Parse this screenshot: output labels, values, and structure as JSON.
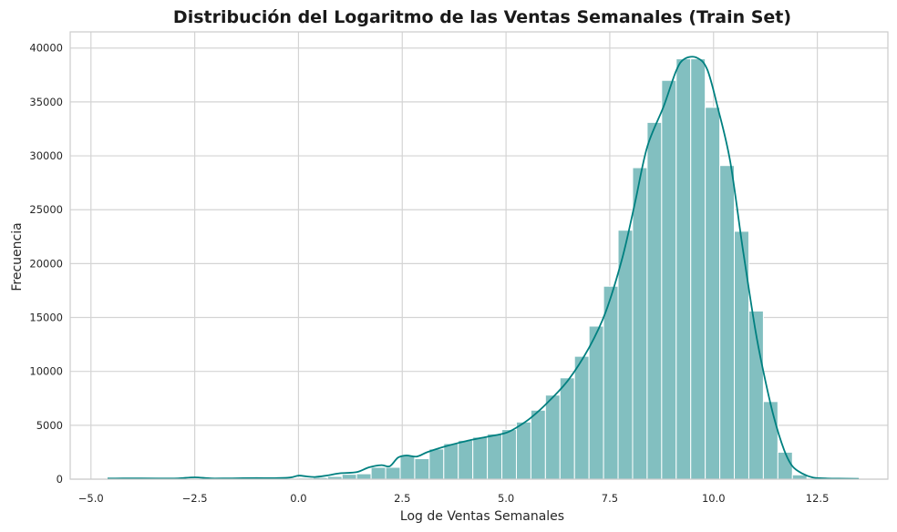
{
  "chart_data": {
    "type": "bar",
    "title": "Distribución del Logaritmo de las Ventas Semanales (Train Set)",
    "xlabel": "Log de Ventas Semanales",
    "ylabel": "Frecuencia",
    "xlim": [
      -5.5,
      14.2
    ],
    "ylim": [
      0,
      41500
    ],
    "xticks": [
      -5.0,
      -2.5,
      0.0,
      2.5,
      5.0,
      7.5,
      10.0,
      12.5
    ],
    "xtick_labels": [
      "−5.0",
      "−2.5",
      "0.0",
      "2.5",
      "5.0",
      "7.5",
      "10.0",
      "12.5"
    ],
    "yticks": [
      0,
      5000,
      10000,
      15000,
      20000,
      25000,
      30000,
      35000,
      40000
    ],
    "ytick_labels": [
      "0",
      "5000",
      "10000",
      "15000",
      "20000",
      "25000",
      "30000",
      "35000",
      "40000"
    ],
    "grid": true,
    "bar_color": "#82bfc0",
    "kde_color": "#008080",
    "bins": [
      {
        "x0": -4.6,
        "x1": -4.25,
        "count": 80
      },
      {
        "x0": -3.9,
        "x1": -3.55,
        "count": 60
      },
      {
        "x0": -2.5,
        "x1": -2.15,
        "count": 60
      },
      {
        "x0": -1.2,
        "x1": -0.85,
        "count": 60
      },
      {
        "x0": -0.4,
        "x1": -0.05,
        "count": 80
      },
      {
        "x0": 0.0,
        "x1": 0.35,
        "count": 100
      },
      {
        "x0": 0.35,
        "x1": 0.7,
        "count": 150
      },
      {
        "x0": 0.7,
        "x1": 1.05,
        "count": 250
      },
      {
        "x0": 1.05,
        "x1": 1.4,
        "count": 450
      },
      {
        "x0": 1.4,
        "x1": 1.75,
        "count": 500
      },
      {
        "x0": 1.75,
        "x1": 2.1,
        "count": 1100
      },
      {
        "x0": 2.1,
        "x1": 2.45,
        "count": 1100
      },
      {
        "x0": 2.45,
        "x1": 2.8,
        "count": 2200
      },
      {
        "x0": 2.8,
        "x1": 3.15,
        "count": 1900
      },
      {
        "x0": 3.15,
        "x1": 3.5,
        "count": 2800
      },
      {
        "x0": 3.5,
        "x1": 3.85,
        "count": 3300
      },
      {
        "x0": 3.85,
        "x1": 4.2,
        "count": 3600
      },
      {
        "x0": 4.2,
        "x1": 4.55,
        "count": 3900
      },
      {
        "x0": 4.55,
        "x1": 4.9,
        "count": 4200
      },
      {
        "x0": 4.9,
        "x1": 5.25,
        "count": 4600
      },
      {
        "x0": 5.25,
        "x1": 5.6,
        "count": 5300
      },
      {
        "x0": 5.6,
        "x1": 5.95,
        "count": 6400
      },
      {
        "x0": 5.95,
        "x1": 6.3,
        "count": 7800
      },
      {
        "x0": 6.3,
        "x1": 6.65,
        "count": 9400
      },
      {
        "x0": 6.65,
        "x1": 7.0,
        "count": 11400
      },
      {
        "x0": 7.0,
        "x1": 7.35,
        "count": 14200
      },
      {
        "x0": 7.35,
        "x1": 7.7,
        "count": 17900
      },
      {
        "x0": 7.7,
        "x1": 8.05,
        "count": 23100
      },
      {
        "x0": 8.05,
        "x1": 8.4,
        "count": 28900
      },
      {
        "x0": 8.4,
        "x1": 8.75,
        "count": 33100
      },
      {
        "x0": 8.75,
        "x1": 9.1,
        "count": 37000
      },
      {
        "x0": 9.1,
        "x1": 9.45,
        "count": 39000
      },
      {
        "x0": 9.45,
        "x1": 9.8,
        "count": 39000
      },
      {
        "x0": 9.8,
        "x1": 10.15,
        "count": 34500
      },
      {
        "x0": 10.15,
        "x1": 10.5,
        "count": 29100
      },
      {
        "x0": 10.5,
        "x1": 10.85,
        "count": 23000
      },
      {
        "x0": 10.85,
        "x1": 11.2,
        "count": 15600
      },
      {
        "x0": 11.2,
        "x1": 11.55,
        "count": 7200
      },
      {
        "x0": 11.55,
        "x1": 11.9,
        "count": 2500
      },
      {
        "x0": 11.9,
        "x1": 12.25,
        "count": 400
      }
    ],
    "kde": [
      [
        -4.6,
        60
      ],
      [
        -4.0,
        80
      ],
      [
        -3.4,
        60
      ],
      [
        -2.9,
        80
      ],
      [
        -2.5,
        170
      ],
      [
        -2.1,
        70
      ],
      [
        -1.6,
        80
      ],
      [
        -1.0,
        100
      ],
      [
        -0.6,
        90
      ],
      [
        -0.2,
        150
      ],
      [
        0.0,
        330
      ],
      [
        0.2,
        250
      ],
      [
        0.4,
        200
      ],
      [
        0.7,
        350
      ],
      [
        1.0,
        550
      ],
      [
        1.4,
        650
      ],
      [
        1.7,
        1100
      ],
      [
        2.0,
        1300
      ],
      [
        2.2,
        1200
      ],
      [
        2.4,
        2000
      ],
      [
        2.6,
        2200
      ],
      [
        2.85,
        2100
      ],
      [
        3.1,
        2500
      ],
      [
        3.5,
        3000
      ],
      [
        4.0,
        3500
      ],
      [
        4.5,
        3900
      ],
      [
        5.0,
        4300
      ],
      [
        5.3,
        4900
      ],
      [
        5.6,
        5700
      ],
      [
        6.0,
        7100
      ],
      [
        6.5,
        9200
      ],
      [
        7.0,
        12200
      ],
      [
        7.4,
        15500
      ],
      [
        7.8,
        20500
      ],
      [
        8.1,
        25500
      ],
      [
        8.4,
        30800
      ],
      [
        8.8,
        34600
      ],
      [
        9.1,
        37900
      ],
      [
        9.3,
        39000
      ],
      [
        9.6,
        39100
      ],
      [
        9.85,
        38000
      ],
      [
        10.1,
        34500
      ],
      [
        10.4,
        29500
      ],
      [
        10.7,
        21500
      ],
      [
        11.0,
        14000
      ],
      [
        11.2,
        10000
      ],
      [
        11.45,
        5800
      ],
      [
        11.7,
        2700
      ],
      [
        11.9,
        1200
      ],
      [
        12.15,
        500
      ],
      [
        12.4,
        150
      ],
      [
        12.7,
        80
      ],
      [
        13.0,
        50
      ],
      [
        13.5,
        30
      ]
    ]
  }
}
